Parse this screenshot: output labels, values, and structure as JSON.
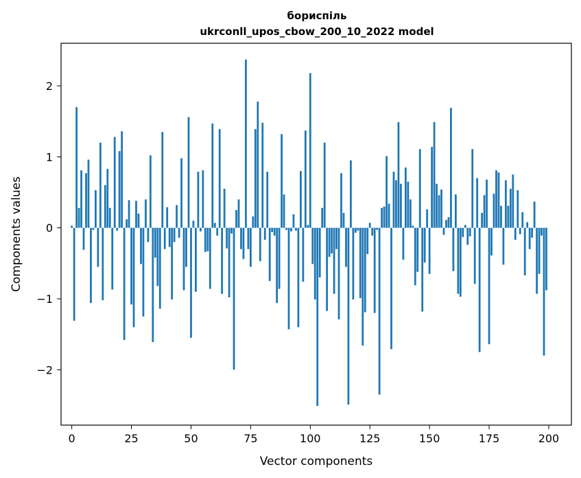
{
  "chart_data": {
    "type": "bar",
    "title": "бориспіль",
    "subtitle": "ukrconll_upos_cbow_200_10_2022 model",
    "xlabel": "Vector components",
    "ylabel": "Components values",
    "xlim": [
      -4.5,
      209.5
    ],
    "ylim": [
      -2.78,
      2.6
    ],
    "xticks": [
      0,
      25,
      50,
      75,
      100,
      125,
      150,
      175,
      200
    ],
    "yticks": [
      -2,
      -1,
      0,
      1,
      2
    ],
    "xtick_labels": [
      "0",
      "25",
      "50",
      "75",
      "100",
      "125",
      "150",
      "175",
      "200"
    ],
    "ytick_labels": [
      "−2",
      "−1",
      "0",
      "1",
      "2"
    ],
    "bar_color": "#1f77b4",
    "grid": false,
    "x": [
      0,
      1,
      2,
      3,
      4,
      5,
      6,
      7,
      8,
      9,
      10,
      11,
      12,
      13,
      14,
      15,
      16,
      17,
      18,
      19,
      20,
      21,
      22,
      23,
      24,
      25,
      26,
      27,
      28,
      29,
      30,
      31,
      32,
      33,
      34,
      35,
      36,
      37,
      38,
      39,
      40,
      41,
      42,
      43,
      44,
      45,
      46,
      47,
      48,
      49,
      50,
      51,
      52,
      53,
      54,
      55,
      56,
      57,
      58,
      59,
      60,
      61,
      62,
      63,
      64,
      65,
      66,
      67,
      68,
      69,
      70,
      71,
      72,
      73,
      74,
      75,
      76,
      77,
      78,
      79,
      80,
      81,
      82,
      83,
      84,
      85,
      86,
      87,
      88,
      89,
      90,
      91,
      92,
      93,
      94,
      95,
      96,
      97,
      98,
      99,
      100,
      101,
      102,
      103,
      104,
      105,
      106,
      107,
      108,
      109,
      110,
      111,
      112,
      113,
      114,
      115,
      116,
      117,
      118,
      119,
      120,
      121,
      122,
      123,
      124,
      125,
      126,
      127,
      128,
      129,
      130,
      131,
      132,
      133,
      134,
      135,
      136,
      137,
      138,
      139,
      140,
      141,
      142,
      143,
      144,
      145,
      146,
      147,
      148,
      149,
      150,
      151,
      152,
      153,
      154,
      155,
      156,
      157,
      158,
      159,
      160,
      161,
      162,
      163,
      164,
      165,
      166,
      167,
      168,
      169,
      170,
      171,
      172,
      173,
      174,
      175,
      176,
      177,
      178,
      179,
      180,
      181,
      182,
      183,
      184,
      185,
      186,
      187,
      188,
      189,
      190,
      191,
      192,
      193,
      194,
      195,
      196,
      197,
      198,
      199
    ],
    "values": [
      0.03,
      -1.31,
      1.7,
      0.28,
      0.81,
      -0.31,
      0.77,
      0.96,
      -1.06,
      -0.03,
      0.53,
      -0.55,
      1.2,
      -1.02,
      0.6,
      0.83,
      0.28,
      -0.87,
      1.28,
      -0.04,
      1.08,
      1.36,
      -1.58,
      0.12,
      0.39,
      -1.08,
      -1.4,
      0.38,
      0.2,
      -0.51,
      -1.25,
      0.4,
      -0.2,
      1.02,
      -1.61,
      -0.42,
      -0.82,
      -1.14,
      1.35,
      -0.3,
      0.29,
      -0.27,
      -1.01,
      -0.2,
      0.32,
      -0.14,
      0.98,
      -0.88,
      -0.55,
      1.56,
      -1.55,
      0.1,
      -0.9,
      0.79,
      -0.05,
      0.81,
      -0.34,
      -0.33,
      -0.86,
      1.47,
      0.07,
      -0.11,
      1.39,
      -0.93,
      0.55,
      -0.29,
      -0.98,
      -0.08,
      -2.0,
      0.25,
      0.4,
      -0.3,
      -0.44,
      2.37,
      -0.3,
      -0.55,
      0.16,
      1.39,
      1.78,
      -0.47,
      1.48,
      -0.17,
      0.79,
      -0.75,
      -0.06,
      -0.11,
      -1.06,
      -0.86,
      1.32,
      0.47,
      -0.03,
      -1.43,
      -0.05,
      0.19,
      -0.04,
      -1.4,
      0.8,
      -0.76,
      1.37,
      0.04,
      2.18,
      -0.51,
      -1.01,
      -2.51,
      -0.7,
      0.28,
      1.2,
      -1.17,
      -0.41,
      -0.36,
      -0.93,
      -0.3,
      -1.29,
      0.77,
      0.21,
      -0.55,
      -2.49,
      0.95,
      -1.01,
      -0.07,
      -0.04,
      -0.99,
      -1.66,
      -1.19,
      -0.37,
      0.07,
      -0.11,
      -1.2,
      -0.03,
      -2.35,
      0.28,
      0.3,
      1.01,
      0.34,
      -1.71,
      0.79,
      0.67,
      1.49,
      0.62,
      -0.45,
      0.85,
      0.65,
      0.4,
      0.03,
      -0.81,
      -0.62,
      1.11,
      -1.18,
      -0.49,
      0.26,
      -0.65,
      1.14,
      1.49,
      0.62,
      0.46,
      0.54,
      -0.1,
      0.11,
      0.15,
      1.69,
      -0.61,
      0.47,
      -0.93,
      -0.97,
      -0.13,
      0.04,
      -0.24,
      -0.12,
      1.11,
      -0.79,
      0.7,
      -1.75,
      0.21,
      0.46,
      0.68,
      -1.64,
      -0.39,
      0.48,
      0.81,
      0.78,
      0.31,
      -0.52,
      0.67,
      0.31,
      0.55,
      0.75,
      -0.17,
      0.53,
      -0.09,
      0.22,
      -0.67,
      0.08,
      -0.3,
      -0.14,
      0.37,
      -0.93,
      -0.65,
      -0.11,
      -1.8,
      -0.88
    ]
  }
}
